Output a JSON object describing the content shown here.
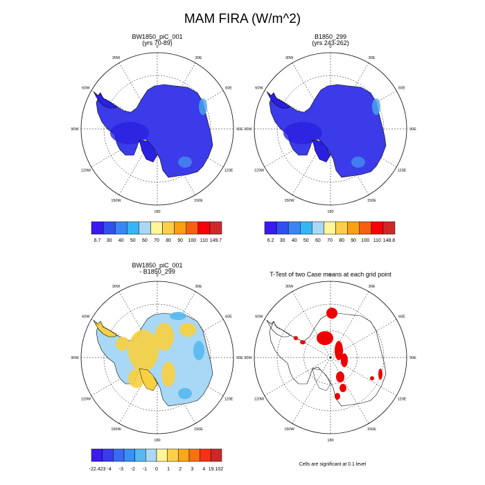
{
  "title": "MAM FIRA (W/m^2)",
  "colors": {
    "land": "#3b3bea",
    "land_dark": "#2a20e0",
    "land_light": "#4aa8f0",
    "diff_land": "#a8d8f5",
    "diff_warm": "#f8d040",
    "diff_cool": "#58b8f0",
    "sig": "#ee0000",
    "grid": "#000000"
  },
  "panels": [
    {
      "title": "BW1850_piC_001",
      "subtitle": "(yrs 70-89)"
    },
    {
      "title": "B1850_299",
      "subtitle": "(yrs 243-262)"
    },
    {
      "title": "BW1850_piC_001",
      "subtitle": "- B1850_299"
    },
    {
      "title": "T-Test of two Case means at each grid point",
      "subtitle": ""
    }
  ],
  "longitude_labels": [
    "0",
    "30E",
    "60E",
    "90E",
    "120E",
    "150E",
    "180",
    "150W",
    "120W",
    "90W",
    "60W",
    "30W"
  ],
  "colorbars": [
    {
      "labels": [
        "6.7",
        "30",
        "40",
        "50",
        "60",
        "70",
        "80",
        "90",
        "100",
        "110",
        "149.7"
      ],
      "colors": [
        "#3a1af0",
        "#3050f0",
        "#3a86f5",
        "#35b5f5",
        "#a8d8f5",
        "#fff59a",
        "#fbd048",
        "#fba010",
        "#f86010",
        "#f80008",
        "#d02828"
      ]
    },
    {
      "labels": [
        "6.2",
        "30",
        "40",
        "50",
        "60",
        "70",
        "80",
        "90",
        "100",
        "110",
        "148.8"
      ],
      "colors": [
        "#3a1af0",
        "#3050f0",
        "#3a86f5",
        "#35b5f5",
        "#a8d8f5",
        "#fff59a",
        "#fbd048",
        "#fba010",
        "#f86010",
        "#f80008",
        "#d02828"
      ]
    },
    {
      "labels": [
        "-22.423",
        "-4",
        "-3",
        "-2",
        "-1",
        "0",
        "1",
        "2",
        "3",
        "4",
        "19.102"
      ],
      "colors": [
        "#3a1af0",
        "#3a3af0",
        "#3a6af5",
        "#3a90f5",
        "#58b8f0",
        "#a8d8f5",
        "#fff59a",
        "#fbd048",
        "#fba818",
        "#f87010",
        "#f83018",
        "#d02828"
      ]
    }
  ],
  "footnote": "Cells are significant at 0.1 level"
}
